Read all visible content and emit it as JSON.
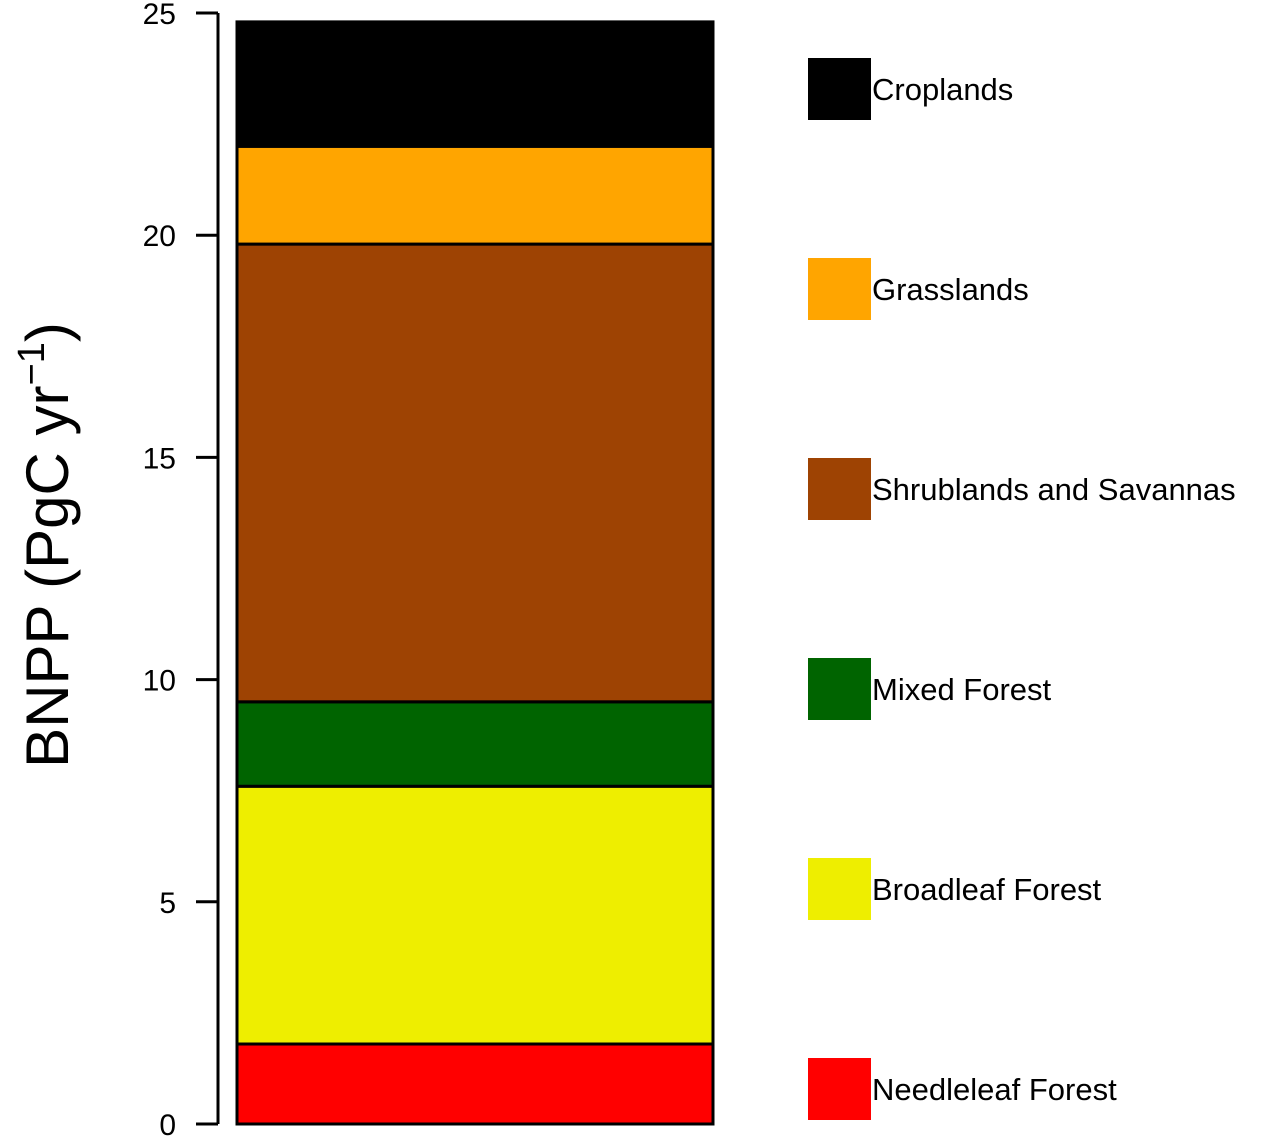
{
  "chart_data": {
    "type": "bar",
    "stacked": true,
    "ylabel": "BNPP (PgC yr",
    "ylabel_superscript": "−1",
    "ylabel_close": ")",
    "ylim": [
      0,
      25
    ],
    "yticks": [
      0,
      5,
      10,
      15,
      20,
      25
    ],
    "grid": false,
    "legend_position": "right",
    "series": [
      {
        "name": "Needleleaf Forest",
        "value": 1.8,
        "color": "#ff0000"
      },
      {
        "name": "Broadleaf Forest",
        "value": 5.8,
        "color": "#eeee00"
      },
      {
        "name": "Mixed Forest",
        "value": 1.9,
        "color": "#006400"
      },
      {
        "name": "Shrublands and Savannas",
        "value": 10.3,
        "color": "#9e4303"
      },
      {
        "name": "Grasslands",
        "value": 2.2,
        "color": "#ffa500"
      },
      {
        "name": "Croplands",
        "value": 2.8,
        "color": "#000000"
      }
    ]
  }
}
